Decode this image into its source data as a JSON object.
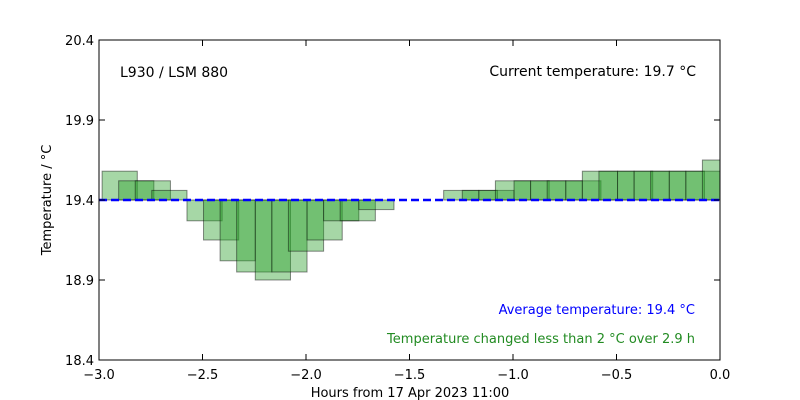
{
  "chart_data": {
    "type": "bar",
    "xlabel": "Hours from 17 Apr 2023 11:00",
    "ylabel": "Temperature / °C",
    "xlim": [
      -3.0,
      0.0
    ],
    "ylim": [
      18.4,
      20.4
    ],
    "xticks": [
      -3.0,
      -2.5,
      -2.0,
      -1.5,
      -1.0,
      -0.5,
      0.0
    ],
    "xtick_labels": [
      "−3.0",
      "−2.5",
      "−2.0",
      "−1.5",
      "−1.0",
      "−0.5",
      "0.0"
    ],
    "yticks": [
      18.4,
      18.9,
      19.4,
      19.9,
      20.4
    ],
    "ytick_labels": [
      "18.4",
      "18.9",
      "19.4",
      "19.9",
      "20.4"
    ],
    "grid": false,
    "baseline": 19.4,
    "bar_color": "#2ca02c",
    "average_line_color": "#0000ff",
    "series": [
      {
        "values": [
          {
            "x": -2.9,
            "y": 19.58
          },
          {
            "x": -2.82,
            "y": 19.52
          },
          {
            "x": -2.74,
            "y": 19.52
          },
          {
            "x": -2.66,
            "y": 19.46
          },
          {
            "x": -2.58,
            "y": 19.4
          },
          {
            "x": -2.49,
            "y": 19.27
          },
          {
            "x": -2.41,
            "y": 19.15
          },
          {
            "x": -2.33,
            "y": 19.02
          },
          {
            "x": -2.25,
            "y": 18.95
          },
          {
            "x": -2.16,
            "y": 18.9
          },
          {
            "x": -2.08,
            "y": 18.95
          },
          {
            "x": -2.0,
            "y": 19.08
          },
          {
            "x": -1.91,
            "y": 19.15
          },
          {
            "x": -1.83,
            "y": 19.27
          },
          {
            "x": -1.75,
            "y": 19.27
          },
          {
            "x": -1.66,
            "y": 19.34
          },
          {
            "x": -1.58,
            "y": 19.4
          },
          {
            "x": -1.5,
            "y": 19.4
          },
          {
            "x": -1.41,
            "y": 19.4
          },
          {
            "x": -1.33,
            "y": 19.4
          },
          {
            "x": -1.25,
            "y": 19.46
          },
          {
            "x": -1.16,
            "y": 19.46
          },
          {
            "x": -1.08,
            "y": 19.46
          },
          {
            "x": -1.0,
            "y": 19.52
          },
          {
            "x": -0.91,
            "y": 19.52
          },
          {
            "x": -0.83,
            "y": 19.52
          },
          {
            "x": -0.75,
            "y": 19.52
          },
          {
            "x": -0.66,
            "y": 19.52
          },
          {
            "x": -0.58,
            "y": 19.58
          },
          {
            "x": -0.5,
            "y": 19.58
          },
          {
            "x": -0.41,
            "y": 19.58
          },
          {
            "x": -0.33,
            "y": 19.58
          },
          {
            "x": -0.25,
            "y": 19.58
          },
          {
            "x": -0.16,
            "y": 19.58
          },
          {
            "x": -0.08,
            "y": 19.58
          },
          {
            "x": 0.0,
            "y": 19.65
          }
        ]
      }
    ],
    "annotations": {
      "sensor": "L930 / LSM 880",
      "current": "Current temperature: 19.7 °C",
      "average": "Average temperature: 19.4 °C",
      "change": "Temperature changed less than 2 °C over 2.9 h"
    },
    "annotation_colors": {
      "sensor": "#000000",
      "current": "#000000",
      "average": "#0000ff",
      "change": "#228b22"
    }
  }
}
